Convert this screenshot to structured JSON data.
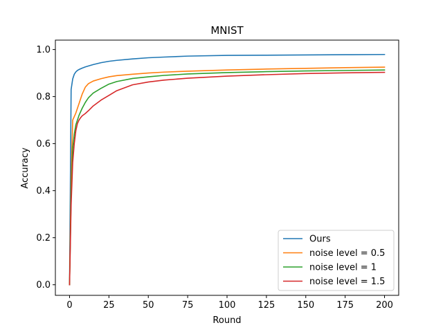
{
  "chart_data": {
    "type": "line",
    "title": "MNIST",
    "xlabel": "Round",
    "ylabel": "Accuracy",
    "xlim": [
      -9,
      209
    ],
    "ylim": [
      -0.045,
      1.04
    ],
    "xticks": [
      0,
      25,
      50,
      75,
      100,
      125,
      150,
      175,
      200
    ],
    "yticks": [
      0.0,
      0.2,
      0.4,
      0.6,
      0.8,
      1.0
    ],
    "xtick_labels": [
      "0",
      "25",
      "50",
      "75",
      "100",
      "125",
      "150",
      "175",
      "200"
    ],
    "ytick_labels": [
      "0.0",
      "0.2",
      "0.4",
      "0.6",
      "0.8",
      "1.0"
    ],
    "legend_position": "lower-right",
    "x": [
      0,
      1,
      2,
      3,
      4,
      5,
      6,
      7,
      8,
      10,
      12,
      15,
      20,
      25,
      30,
      40,
      50,
      60,
      75,
      100,
      125,
      150,
      175,
      200
    ],
    "series": [
      {
        "name": "Ours",
        "color": "#1f77b4",
        "values": [
          0.0,
          0.83,
          0.875,
          0.895,
          0.905,
          0.911,
          0.915,
          0.918,
          0.921,
          0.926,
          0.93,
          0.936,
          0.944,
          0.95,
          0.954,
          0.96,
          0.965,
          0.968,
          0.972,
          0.975,
          0.976,
          0.977,
          0.978,
          0.979
        ]
      },
      {
        "name": "noise level = 0.5",
        "color": "#ff7f0e",
        "values": [
          0.0,
          0.45,
          0.7,
          0.715,
          0.73,
          0.75,
          0.77,
          0.79,
          0.81,
          0.84,
          0.855,
          0.866,
          0.876,
          0.884,
          0.889,
          0.895,
          0.9,
          0.904,
          0.908,
          0.913,
          0.917,
          0.92,
          0.923,
          0.925
        ]
      },
      {
        "name": "noise level = 1",
        "color": "#2ca02c",
        "values": [
          0.0,
          0.38,
          0.58,
          0.64,
          0.68,
          0.7,
          0.72,
          0.735,
          0.75,
          0.775,
          0.795,
          0.815,
          0.835,
          0.853,
          0.864,
          0.877,
          0.884,
          0.89,
          0.896,
          0.902,
          0.906,
          0.909,
          0.911,
          0.913
        ]
      },
      {
        "name": "noise level = 1.5",
        "color": "#d62728",
        "values": [
          0.0,
          0.34,
          0.52,
          0.6,
          0.655,
          0.685,
          0.7,
          0.71,
          0.718,
          0.728,
          0.74,
          0.76,
          0.785,
          0.805,
          0.825,
          0.85,
          0.862,
          0.87,
          0.878,
          0.887,
          0.893,
          0.898,
          0.901,
          0.903
        ]
      }
    ]
  }
}
